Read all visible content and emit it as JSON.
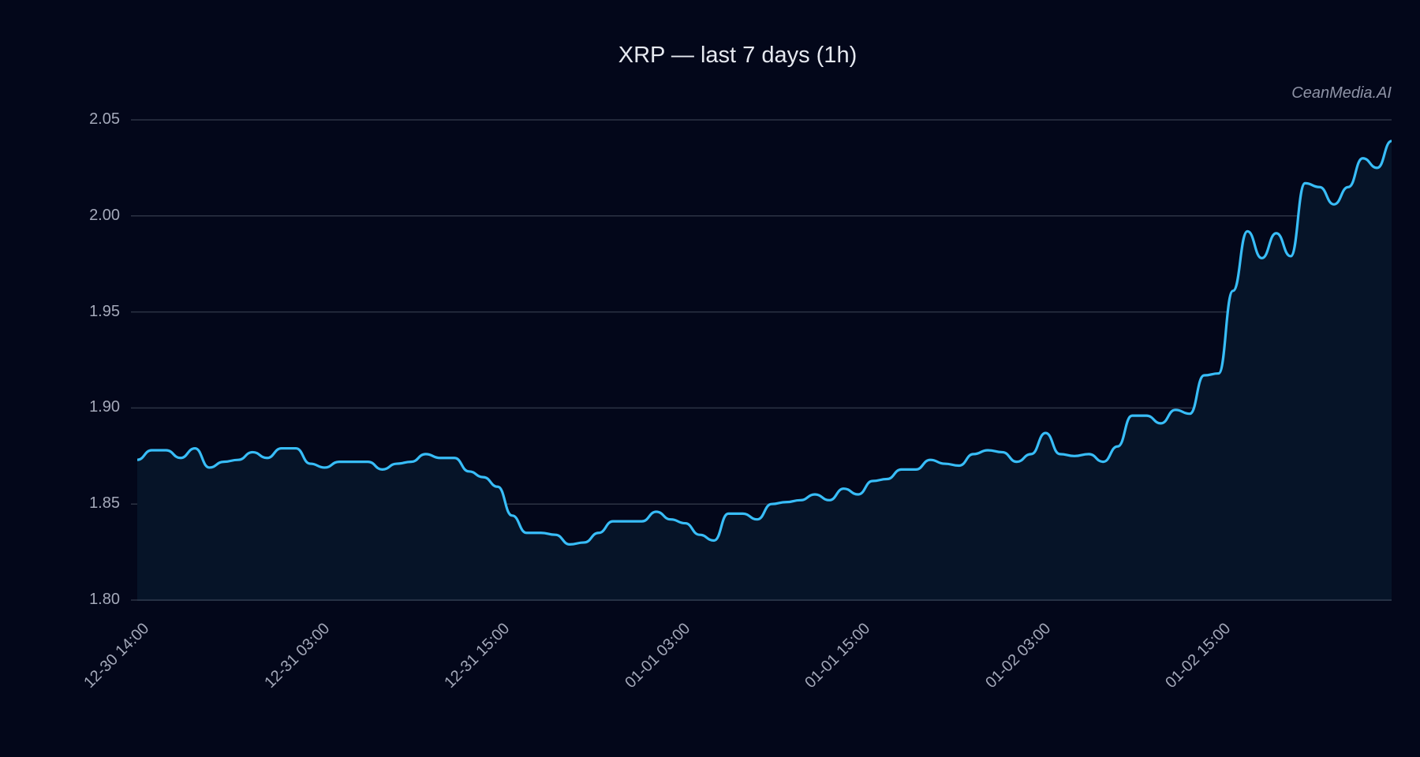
{
  "chart_data": {
    "type": "line",
    "title": "XRP — last 7 days (1h)",
    "watermark": "CeanMedia.AI",
    "xlabel": "",
    "ylabel": "",
    "ylim": [
      1.8,
      2.05
    ],
    "yticks": [
      "1.80",
      "1.85",
      "1.90",
      "1.95",
      "2.00",
      "2.05"
    ],
    "xticks": [
      "12-30 14:00",
      "12-31 03:00",
      "12-31 15:00",
      "01-01 03:00",
      "01-01 15:00",
      "01-02 03:00",
      "01-02 15:00"
    ],
    "grid": true,
    "legend": "none",
    "line_color": "#38bdf8",
    "fill_color": "#061428",
    "series": [
      {
        "name": "XRP",
        "values": [
          1.873,
          1.878,
          1.878,
          1.874,
          1.879,
          1.869,
          1.872,
          1.873,
          1.877,
          1.874,
          1.879,
          1.879,
          1.871,
          1.869,
          1.872,
          1.872,
          1.872,
          1.868,
          1.871,
          1.872,
          1.876,
          1.874,
          1.874,
          1.867,
          1.864,
          1.859,
          1.844,
          1.835,
          1.835,
          1.834,
          1.829,
          1.83,
          1.835,
          1.841,
          1.841,
          1.841,
          1.846,
          1.842,
          1.84,
          1.834,
          1.831,
          1.845,
          1.845,
          1.842,
          1.85,
          1.851,
          1.852,
          1.855,
          1.852,
          1.858,
          1.855,
          1.862,
          1.863,
          1.868,
          1.868,
          1.873,
          1.871,
          1.87,
          1.876,
          1.878,
          1.877,
          1.872,
          1.876,
          1.887,
          1.876,
          1.875,
          1.876,
          1.872,
          1.88,
          1.896,
          1.896,
          1.892,
          1.899,
          1.897,
          1.917,
          1.918,
          1.961,
          1.992,
          1.978,
          1.991,
          1.979,
          2.017,
          2.015,
          2.006,
          2.015,
          2.03,
          2.025,
          2.039
        ]
      }
    ]
  }
}
